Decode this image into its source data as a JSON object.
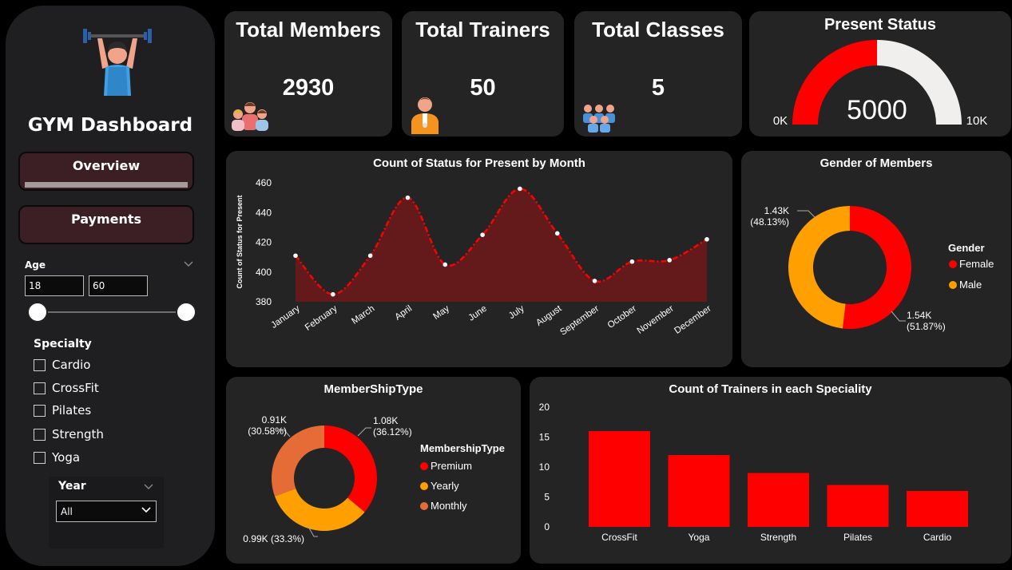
{
  "sidebar": {
    "title": "GYM Dashboard",
    "nav": [
      {
        "label": "Overview"
      },
      {
        "label": "Payments"
      }
    ],
    "age": {
      "label": "Age",
      "min": "18",
      "max": "60"
    },
    "specialty": {
      "label": "Specialty",
      "options": [
        "Cardio",
        "CrossFit",
        "Pilates",
        "Strength",
        "Yoga"
      ]
    },
    "year": {
      "label": "Year",
      "value": "All"
    }
  },
  "kpis": {
    "members": {
      "title": "Total Members",
      "value": "2930"
    },
    "trainers": {
      "title": "Total Trainers",
      "value": "50"
    },
    "classes": {
      "title": "Total Classes",
      "value": "5"
    }
  },
  "gauge": {
    "title": "Present Status",
    "value": "5000",
    "min_label": "0K",
    "max_label": "10K",
    "fraction": 0.5,
    "color": "#ff0000",
    "track_color": "#f1efee"
  },
  "colors": {
    "accent": "#ff0000",
    "area_fill": "#641a1a",
    "orange": "#ffa000",
    "dark_orange": "#e66c37",
    "card": "#252424"
  },
  "chart_data": [
    {
      "type": "area",
      "title": "Count of Status for Present by Month",
      "xlabel": "",
      "ylabel": "Count of Status for Present",
      "categories": [
        "January",
        "February",
        "March",
        "April",
        "May",
        "June",
        "July",
        "August",
        "September",
        "October",
        "November",
        "December"
      ],
      "values": [
        411,
        385,
        411,
        450,
        405,
        425,
        456,
        426,
        394,
        407,
        408,
        422
      ],
      "ylim": [
        380,
        460
      ],
      "yticks": [
        "380",
        "400",
        "420",
        "440",
        "460"
      ]
    },
    {
      "type": "pie",
      "title": "Gender of Members",
      "legend_title": "Gender",
      "labels": [
        "Female",
        "Male"
      ],
      "values": [
        51.87,
        48.13
      ],
      "data_labels": [
        [
          "1.54K",
          "(51.87%)"
        ],
        [
          "1.43K",
          "(48.13%)"
        ]
      ],
      "colors": [
        "#ff0000",
        "#ffa000"
      ]
    },
    {
      "type": "pie",
      "title": "MemberShipType",
      "legend_title": "MembershipType",
      "labels": [
        "Premium",
        "Yearly",
        "Monthly"
      ],
      "values": [
        36.12,
        33.3,
        30.58
      ],
      "data_labels": [
        [
          "1.08K",
          "(36.12%)"
        ],
        [
          "0.99K (33.3%)"
        ],
        [
          "0.91K",
          "(30.58%)"
        ]
      ],
      "colors": [
        "#ff0000",
        "#ffa000",
        "#e66c37"
      ]
    },
    {
      "type": "bar",
      "title": "Count of Trainers in each Speciality",
      "categories": [
        "CrossFit",
        "Yoga",
        "Strength",
        "Pilates",
        "Cardio"
      ],
      "values": [
        16,
        12,
        9,
        7,
        6
      ],
      "ylim": [
        0,
        20
      ],
      "yticks": [
        "0",
        "5",
        "10",
        "15",
        "20"
      ]
    }
  ]
}
